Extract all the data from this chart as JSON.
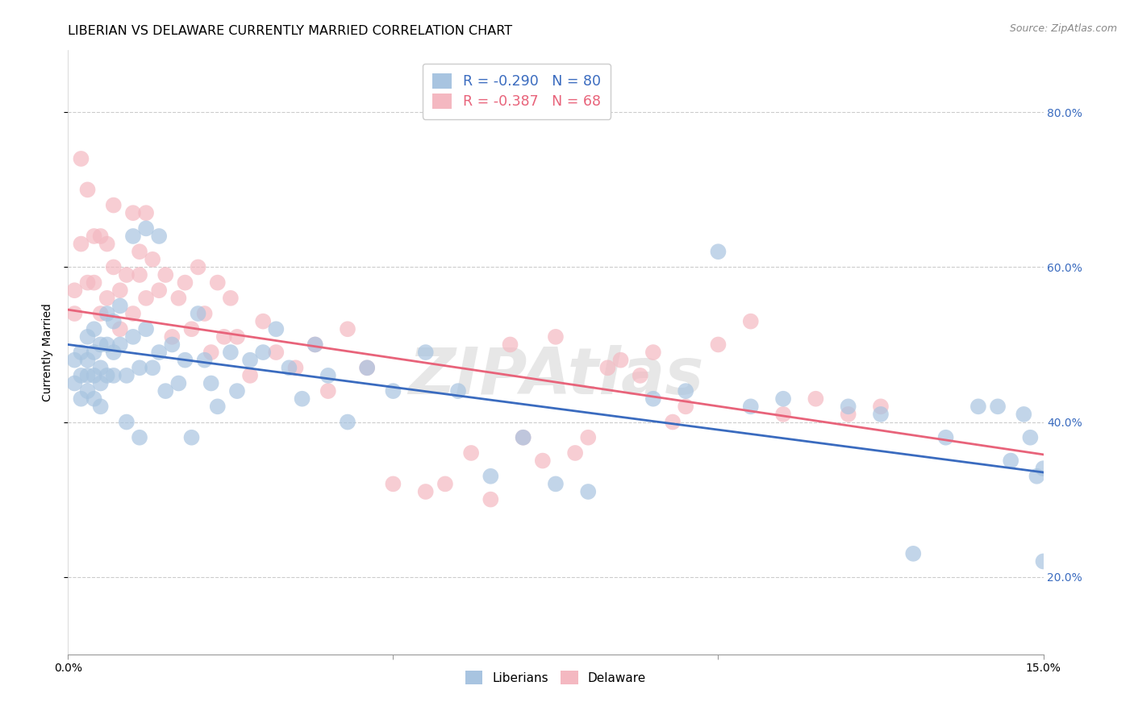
{
  "title": "LIBERIAN VS DELAWARE CURRENTLY MARRIED CORRELATION CHART",
  "source": "Source: ZipAtlas.com",
  "ylabel": "Currently Married",
  "watermark": "ZIPAtlas",
  "xlim": [
    0.0,
    0.15
  ],
  "ylim": [
    0.1,
    0.88
  ],
  "yticks": [
    0.2,
    0.4,
    0.6,
    0.8
  ],
  "yticklabels": [
    "20.0%",
    "40.0%",
    "60.0%",
    "80.0%"
  ],
  "xtick_positions": [
    0.0,
    0.05,
    0.1,
    0.15
  ],
  "xticklabels": [
    "0.0%",
    "",
    "",
    "15.0%"
  ],
  "blue_color": "#a8c4e0",
  "pink_color": "#f4b8c1",
  "blue_line_color": "#3a6bbf",
  "pink_line_color": "#e8637a",
  "blue_R": -0.29,
  "blue_N": 80,
  "pink_R": -0.387,
  "pink_N": 68,
  "blue_line_x": [
    0.0,
    0.15
  ],
  "blue_line_y": [
    0.5,
    0.335
  ],
  "pink_line_x": [
    0.0,
    0.15
  ],
  "pink_line_y": [
    0.545,
    0.358
  ],
  "blue_scatter_x": [
    0.001,
    0.001,
    0.002,
    0.002,
    0.002,
    0.003,
    0.003,
    0.003,
    0.003,
    0.004,
    0.004,
    0.004,
    0.004,
    0.005,
    0.005,
    0.005,
    0.005,
    0.006,
    0.006,
    0.006,
    0.007,
    0.007,
    0.007,
    0.008,
    0.008,
    0.009,
    0.009,
    0.01,
    0.01,
    0.011,
    0.011,
    0.012,
    0.012,
    0.013,
    0.014,
    0.014,
    0.015,
    0.016,
    0.017,
    0.018,
    0.019,
    0.02,
    0.021,
    0.022,
    0.023,
    0.025,
    0.026,
    0.028,
    0.03,
    0.032,
    0.034,
    0.036,
    0.038,
    0.04,
    0.043,
    0.046,
    0.05,
    0.055,
    0.06,
    0.065,
    0.07,
    0.075,
    0.08,
    0.09,
    0.095,
    0.1,
    0.105,
    0.11,
    0.12,
    0.125,
    0.13,
    0.135,
    0.14,
    0.143,
    0.145,
    0.147,
    0.148,
    0.149,
    0.15,
    0.15
  ],
  "blue_scatter_y": [
    0.48,
    0.45,
    0.49,
    0.46,
    0.43,
    0.51,
    0.48,
    0.46,
    0.44,
    0.52,
    0.49,
    0.46,
    0.43,
    0.5,
    0.47,
    0.45,
    0.42,
    0.54,
    0.5,
    0.46,
    0.53,
    0.49,
    0.46,
    0.55,
    0.5,
    0.46,
    0.4,
    0.64,
    0.51,
    0.47,
    0.38,
    0.65,
    0.52,
    0.47,
    0.64,
    0.49,
    0.44,
    0.5,
    0.45,
    0.48,
    0.38,
    0.54,
    0.48,
    0.45,
    0.42,
    0.49,
    0.44,
    0.48,
    0.49,
    0.52,
    0.47,
    0.43,
    0.5,
    0.46,
    0.4,
    0.47,
    0.44,
    0.49,
    0.44,
    0.33,
    0.38,
    0.32,
    0.31,
    0.43,
    0.44,
    0.62,
    0.42,
    0.43,
    0.42,
    0.41,
    0.23,
    0.38,
    0.42,
    0.42,
    0.35,
    0.41,
    0.38,
    0.33,
    0.34,
    0.22
  ],
  "pink_scatter_x": [
    0.001,
    0.001,
    0.002,
    0.002,
    0.003,
    0.003,
    0.004,
    0.004,
    0.005,
    0.005,
    0.006,
    0.006,
    0.007,
    0.007,
    0.008,
    0.008,
    0.009,
    0.01,
    0.01,
    0.011,
    0.011,
    0.012,
    0.012,
    0.013,
    0.014,
    0.015,
    0.016,
    0.017,
    0.018,
    0.019,
    0.02,
    0.021,
    0.022,
    0.023,
    0.024,
    0.025,
    0.026,
    0.028,
    0.03,
    0.032,
    0.035,
    0.038,
    0.04,
    0.043,
    0.046,
    0.05,
    0.055,
    0.058,
    0.062,
    0.065,
    0.068,
    0.07,
    0.073,
    0.075,
    0.078,
    0.08,
    0.083,
    0.085,
    0.088,
    0.09,
    0.093,
    0.095,
    0.1,
    0.105,
    0.11,
    0.115,
    0.12,
    0.125
  ],
  "pink_scatter_y": [
    0.54,
    0.57,
    0.74,
    0.63,
    0.58,
    0.7,
    0.64,
    0.58,
    0.54,
    0.64,
    0.56,
    0.63,
    0.6,
    0.68,
    0.52,
    0.57,
    0.59,
    0.67,
    0.54,
    0.59,
    0.62,
    0.56,
    0.67,
    0.61,
    0.57,
    0.59,
    0.51,
    0.56,
    0.58,
    0.52,
    0.6,
    0.54,
    0.49,
    0.58,
    0.51,
    0.56,
    0.51,
    0.46,
    0.53,
    0.49,
    0.47,
    0.5,
    0.44,
    0.52,
    0.47,
    0.32,
    0.31,
    0.32,
    0.36,
    0.3,
    0.5,
    0.38,
    0.35,
    0.51,
    0.36,
    0.38,
    0.47,
    0.48,
    0.46,
    0.49,
    0.4,
    0.42,
    0.5,
    0.53,
    0.41,
    0.43,
    0.41,
    0.42
  ],
  "title_fontsize": 11.5,
  "label_fontsize": 10,
  "tick_fontsize": 10,
  "source_fontsize": 9,
  "legend_fontsize": 12.5
}
